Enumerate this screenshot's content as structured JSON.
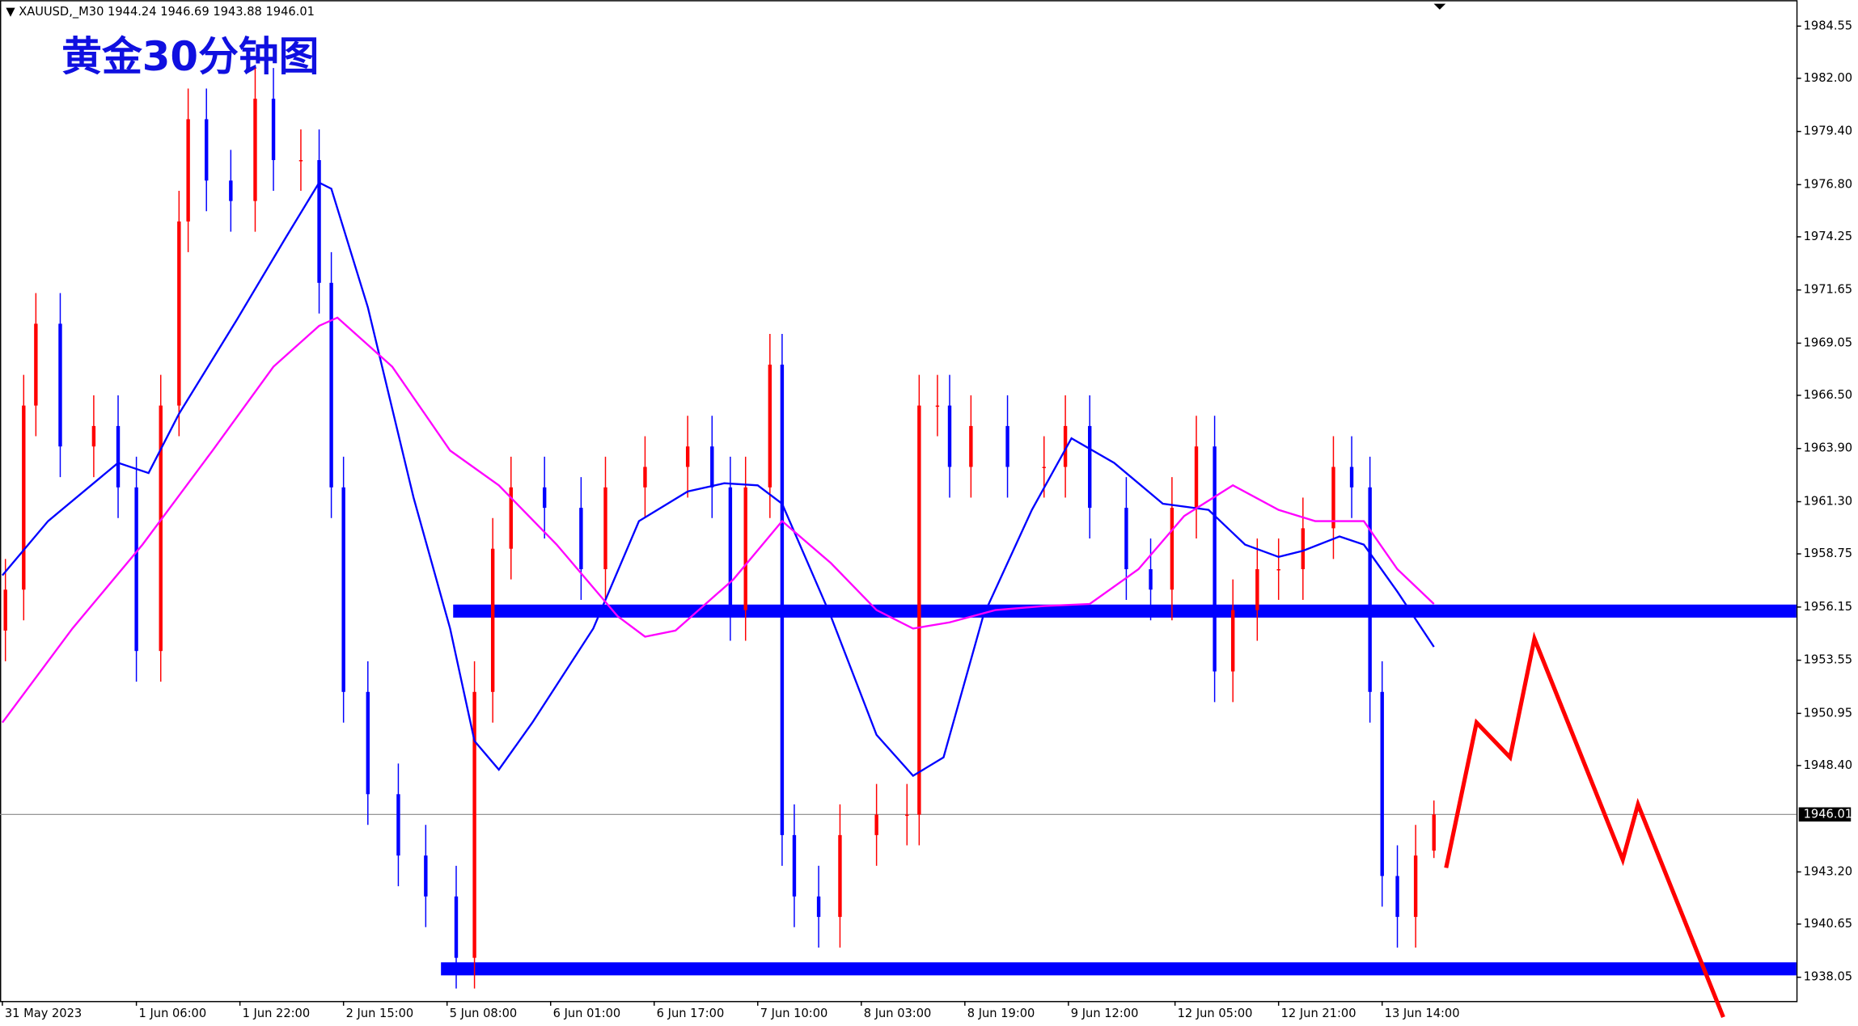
{
  "chart_data": {
    "type": "candlestick",
    "symbol": "XAUUSD,_M30",
    "title": "黄金30分钟图",
    "xlim": [
      0,
      589
    ],
    "ylim": [
      1936.89,
      1985.82
    ],
    "xticks": [
      {
        "value": 0,
        "label": "31 May 2023"
      },
      {
        "value": 44,
        "label": "1 Jun 06:00"
      },
      {
        "value": 78,
        "label": "1 Jun 22:00"
      },
      {
        "value": 112,
        "label": "2 Jun 15:00"
      },
      {
        "value": 146,
        "label": "5 Jun 08:00"
      },
      {
        "value": 180,
        "label": "6 Jun 01:00"
      },
      {
        "value": 214,
        "label": "6 Jun 17:00"
      },
      {
        "value": 248,
        "label": "7 Jun 10:00"
      },
      {
        "value": 282,
        "label": "8 Jun 03:00"
      },
      {
        "value": 316,
        "label": "8 Jun 19:00"
      },
      {
        "value": 350,
        "label": "9 Jun 12:00"
      },
      {
        "value": 385,
        "label": "12 Jun 05:00"
      },
      {
        "value": 419,
        "label": "12 Jun 21:00"
      },
      {
        "value": 453,
        "label": "13 Jun 14:00"
      }
    ],
    "yticks": [
      1984.55,
      {
        "value": 1982.0,
        "label": "1982.00"
      },
      {
        "value": 1979.4,
        "label": "1979.40"
      },
      {
        "value": 1976.8,
        "label": "1976.80"
      },
      1974.25,
      1971.65,
      1969.05,
      {
        "value": 1966.5,
        "label": "1966.50"
      },
      {
        "value": 1963.9,
        "label": "1963.90"
      },
      {
        "value": 1961.3,
        "label": "1961.30"
      },
      1958.75,
      1956.15,
      1953.55,
      1950.95,
      {
        "value": 1948.4,
        "label": "1948.40"
      },
      {
        "value": 1943.2,
        "label": "1943.20"
      },
      1940.65,
      1938.05
    ],
    "up_color": "#ff0000",
    "down_color": "#0000ff",
    "x": [
      1,
      7,
      11,
      19,
      30,
      38,
      44,
      52,
      58,
      61,
      67,
      75,
      83,
      89,
      98,
      104,
      108,
      112,
      120,
      130,
      139,
      149,
      155,
      161,
      167,
      178,
      190,
      198,
      211,
      225,
      233,
      239,
      244,
      252,
      256,
      260,
      268,
      275,
      287,
      297,
      301,
      307,
      311,
      318,
      330,
      342,
      349,
      357,
      369,
      377,
      384,
      392,
      398,
      404,
      412,
      419,
      427,
      437,
      443,
      449,
      453,
      458,
      464,
      470
    ],
    "open": [
      1955,
      1957,
      1966,
      1970,
      1964,
      1965,
      1962,
      1954,
      1966,
      1975,
      1980,
      1977,
      1976,
      1981,
      1978,
      1978,
      1972,
      1962,
      1952,
      1947,
      1944,
      1942,
      1939,
      1952,
      1959,
      1962,
      1961,
      1958,
      1962,
      1963,
      1964,
      1962,
      1956,
      1962,
      1968,
      1945,
      1942,
      1941,
      1945,
      1946,
      1946,
      1966,
      1966,
      1963,
      1965,
      1963,
      1963,
      1965,
      1961,
      1958,
      1957,
      1961,
      1964,
      1953,
      1956,
      1958,
      1958,
      1960,
      1963,
      1962,
      1952,
      1943,
      1941,
      1944.24
    ],
    "high": [
      1958.5,
      1967.5,
      1971.5,
      1971.5,
      1966.5,
      1966.5,
      1963.5,
      1967.5,
      1976.5,
      1981.5,
      1981.5,
      1978.5,
      1982.5,
      1982.5,
      1979.5,
      1979.5,
      1973.5,
      1963.5,
      1953.5,
      1948.5,
      1945.5,
      1943.5,
      1953.5,
      1960.5,
      1963.5,
      1963.5,
      1962.5,
      1963.5,
      1964.5,
      1965.5,
      1965.5,
      1963.5,
      1963.5,
      1969.5,
      1969.5,
      1946.5,
      1943.5,
      1946.5,
      1947.5,
      1947.5,
      1967.5,
      1967.5,
      1967.5,
      1966.5,
      1966.5,
      1964.5,
      1966.5,
      1966.5,
      1962.5,
      1959.5,
      1962.5,
      1965.5,
      1965.5,
      1957.5,
      1959.5,
      1959.5,
      1961.5,
      1964.5,
      1964.5,
      1963.5,
      1953.5,
      1944.5,
      1945.5,
      1946.69
    ],
    "low": [
      1953.5,
      1955.5,
      1964.5,
      1962.5,
      1962.5,
      1960.5,
      1952.5,
      1952.5,
      1964.5,
      1973.5,
      1975.5,
      1974.5,
      1974.5,
      1976.5,
      1976.5,
      1970.5,
      1960.5,
      1950.5,
      1945.5,
      1942.5,
      1940.5,
      1937.5,
      1937.5,
      1950.5,
      1957.5,
      1959.5,
      1956.5,
      1956.5,
      1960.5,
      1961.5,
      1960.5,
      1954.5,
      1954.5,
      1960.5,
      1943.5,
      1940.5,
      1939.5,
      1939.5,
      1943.5,
      1944.5,
      1944.5,
      1964.5,
      1961.5,
      1961.5,
      1961.5,
      1961.5,
      1961.5,
      1959.5,
      1956.5,
      1955.5,
      1955.5,
      1959.5,
      1951.5,
      1951.5,
      1954.5,
      1956.5,
      1956.5,
      1958.5,
      1960.5,
      1950.5,
      1941.5,
      1939.5,
      1939.5,
      1943.88
    ],
    "close": [
      1957,
      1966,
      1970,
      1964,
      1965,
      1962,
      1954,
      1966,
      1975,
      1980,
      1977,
      1976,
      1981,
      1978,
      1978,
      1972,
      1962,
      1952,
      1947,
      1944,
      1942,
      1939,
      1952,
      1959,
      1962,
      1961,
      1958,
      1962,
      1963,
      1964,
      1962,
      1956,
      1962,
      1968,
      1945,
      1942,
      1941,
      1945,
      1946,
      1946,
      1966,
      1966,
      1963,
      1965,
      1963,
      1963,
      1965,
      1961,
      1958,
      1957,
      1961,
      1964,
      1953,
      1956,
      1958,
      1958,
      1960,
      1963,
      1962,
      1952,
      1943,
      1941,
      1944,
      1946.01
    ],
    "series": [
      {
        "color": "#0000ff",
        "x": [
          0,
          15,
          38,
          48,
          58,
          77,
          93,
          104,
          108,
          120,
          135,
          147,
          155,
          163,
          174,
          194,
          209,
          225,
          237,
          248,
          256,
          272,
          287,
          299,
          309,
          322,
          338,
          351,
          365,
          381,
          396,
          408,
          419,
          427,
          439,
          447,
          458,
          470
        ],
        "values": [
          1957.7,
          1960.35,
          1963.2,
          1962.7,
          1965.6,
          1970.2,
          1974.2,
          1976.9,
          1976.6,
          1970.8,
          1961.5,
          1955.1,
          1949.6,
          1948.2,
          1950.5,
          1955.1,
          1960.35,
          1961.8,
          1962.2,
          1962.1,
          1961.2,
          1955.7,
          1949.9,
          1947.9,
          1948.8,
          1955.7,
          1960.9,
          1964.4,
          1963.2,
          1961.2,
          1960.9,
          1959.2,
          1958.6,
          1958.9,
          1959.6,
          1959.2,
          1956.9,
          1954.2
        ]
      },
      {
        "color": "#ff00ff",
        "x": [
          0,
          23,
          46,
          69,
          89,
          104,
          110,
          128,
          147,
          163,
          182,
          202,
          211,
          221,
          240,
          256,
          272,
          287,
          299,
          311,
          326,
          342,
          357,
          373,
          388,
          404,
          419,
          431,
          447,
          458,
          470
        ],
        "values": [
          1950.5,
          1955.1,
          1959.2,
          1963.8,
          1967.9,
          1969.9,
          1970.3,
          1967.9,
          1963.8,
          1962.1,
          1959.2,
          1955.7,
          1954.7,
          1955.0,
          1957.5,
          1960.35,
          1958.3,
          1956.0,
          1955.1,
          1955.4,
          1956.0,
          1956.2,
          1956.3,
          1958.0,
          1960.6,
          1962.1,
          1960.9,
          1960.35,
          1960.35,
          1958.0,
          1956.3
        ]
      }
    ],
    "levels": [
      {
        "value": 1955.95,
        "from": 148,
        "color": "#0000ff"
      },
      {
        "value": 1938.46,
        "from": 144,
        "color": "#0000ff"
      }
    ],
    "projection": {
      "color": "#ff0000",
      "x": [
        474,
        484,
        495,
        503,
        532,
        537,
        565
      ],
      "values": [
        1943.4,
        1950.5,
        1948.8,
        1954.6,
        1943.8,
        1946.5,
        1936.1
      ]
    }
  }
}
